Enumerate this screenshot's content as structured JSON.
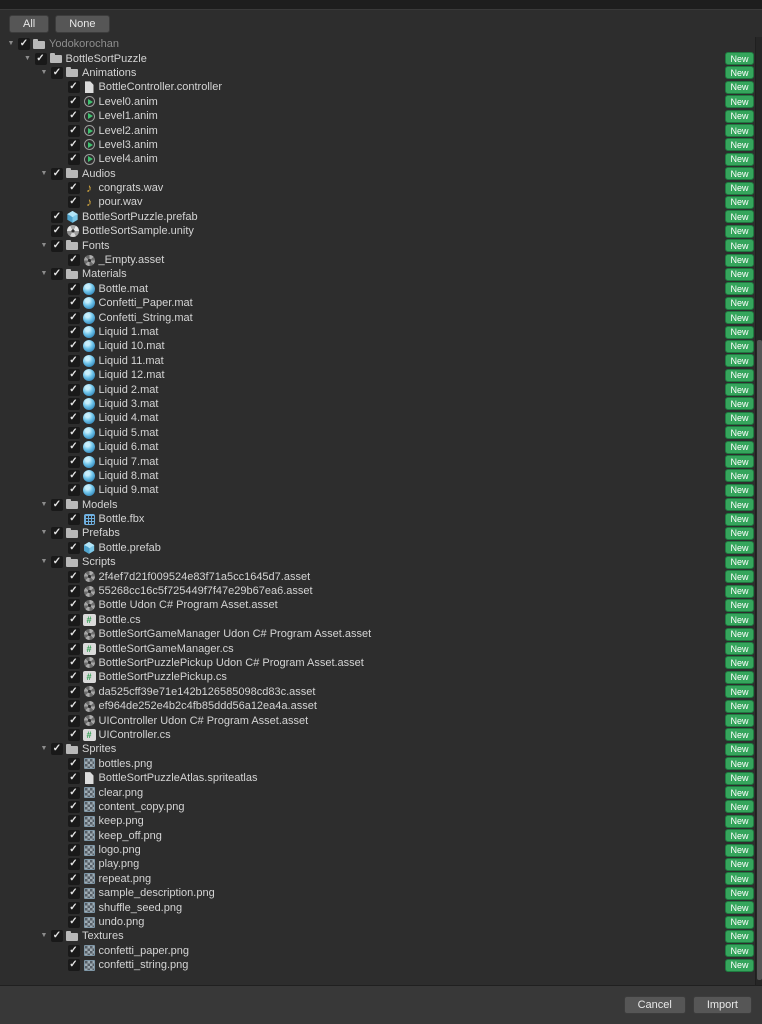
{
  "toolbar": {
    "all": "All",
    "none": "None"
  },
  "footer": {
    "cancel": "Cancel",
    "import": "Import"
  },
  "badge": "New",
  "glyphs": {
    "arrow": "▼",
    "check": "✓",
    "audio": "♪",
    "cs": "#"
  },
  "colors": {
    "badge_green": "#35a55c",
    "material_blue": "#58b8e4",
    "prefab_blue": "#8fd2ee",
    "audio_gold": "#d2a63e",
    "cs_green": "#2f9e50"
  },
  "tree": [
    {
      "label": "Yodokorochan",
      "level": 0,
      "icon": "folder",
      "arrow": true,
      "dim": true,
      "badge": false
    },
    {
      "label": "BottleSortPuzzle",
      "level": 1,
      "icon": "folder",
      "arrow": true
    },
    {
      "label": "Animations",
      "level": 2,
      "icon": "folder",
      "arrow": true
    },
    {
      "label": "BottleController.controller",
      "level": 3,
      "icon": "doc"
    },
    {
      "label": "Level0.anim",
      "level": 3,
      "icon": "anim"
    },
    {
      "label": "Level1.anim",
      "level": 3,
      "icon": "anim"
    },
    {
      "label": "Level2.anim",
      "level": 3,
      "icon": "anim"
    },
    {
      "label": "Level3.anim",
      "level": 3,
      "icon": "anim"
    },
    {
      "label": "Level4.anim",
      "level": 3,
      "icon": "anim"
    },
    {
      "label": "Audios",
      "level": 2,
      "icon": "folder",
      "arrow": true
    },
    {
      "label": "congrats.wav",
      "level": 3,
      "icon": "audio"
    },
    {
      "label": "pour.wav",
      "level": 3,
      "icon": "audio"
    },
    {
      "label": "BottleSortPuzzle.prefab",
      "level": 2,
      "icon": "prefab"
    },
    {
      "label": "BottleSortSample.unity",
      "level": 2,
      "icon": "unity"
    },
    {
      "label": "Fonts",
      "level": 2,
      "icon": "folder",
      "arrow": true
    },
    {
      "label": "_Empty.asset",
      "level": 3,
      "icon": "asset"
    },
    {
      "label": "Materials",
      "level": 2,
      "icon": "folder",
      "arrow": true
    },
    {
      "label": "Bottle.mat",
      "level": 3,
      "icon": "material"
    },
    {
      "label": "Confetti_Paper.mat",
      "level": 3,
      "icon": "material"
    },
    {
      "label": "Confetti_String.mat",
      "level": 3,
      "icon": "material"
    },
    {
      "label": "Liquid 1.mat",
      "level": 3,
      "icon": "material"
    },
    {
      "label": "Liquid 10.mat",
      "level": 3,
      "icon": "material"
    },
    {
      "label": "Liquid 11.mat",
      "level": 3,
      "icon": "material"
    },
    {
      "label": "Liquid 12.mat",
      "level": 3,
      "icon": "material"
    },
    {
      "label": "Liquid 2.mat",
      "level": 3,
      "icon": "material"
    },
    {
      "label": "Liquid 3.mat",
      "level": 3,
      "icon": "material"
    },
    {
      "label": "Liquid 4.mat",
      "level": 3,
      "icon": "material"
    },
    {
      "label": "Liquid 5.mat",
      "level": 3,
      "icon": "material"
    },
    {
      "label": "Liquid 6.mat",
      "level": 3,
      "icon": "material"
    },
    {
      "label": "Liquid 7.mat",
      "level": 3,
      "icon": "material"
    },
    {
      "label": "Liquid 8.mat",
      "level": 3,
      "icon": "material"
    },
    {
      "label": "Liquid 9.mat",
      "level": 3,
      "icon": "material"
    },
    {
      "label": "Models",
      "level": 2,
      "icon": "folder",
      "arrow": true
    },
    {
      "label": "Bottle.fbx",
      "level": 3,
      "icon": "fbx"
    },
    {
      "label": "Prefabs",
      "level": 2,
      "icon": "folder",
      "arrow": true
    },
    {
      "label": "Bottle.prefab",
      "level": 3,
      "icon": "prefab"
    },
    {
      "label": "Scripts",
      "level": 2,
      "icon": "folder",
      "arrow": true
    },
    {
      "label": "2f4ef7d21f009524e83f71a5cc1645d7.asset",
      "level": 3,
      "icon": "asset"
    },
    {
      "label": "55268cc16c5f725449f7f47e29b67ea6.asset",
      "level": 3,
      "icon": "asset"
    },
    {
      "label": "Bottle Udon C# Program Asset.asset",
      "level": 3,
      "icon": "asset"
    },
    {
      "label": "Bottle.cs",
      "level": 3,
      "icon": "cs"
    },
    {
      "label": "BottleSortGameManager Udon C# Program Asset.asset",
      "level": 3,
      "icon": "asset"
    },
    {
      "label": "BottleSortGameManager.cs",
      "level": 3,
      "icon": "cs"
    },
    {
      "label": "BottleSortPuzzlePickup Udon C# Program Asset.asset",
      "level": 3,
      "icon": "asset"
    },
    {
      "label": "BottleSortPuzzlePickup.cs",
      "level": 3,
      "icon": "cs"
    },
    {
      "label": "da525cff39e71e142b126585098cd83c.asset",
      "level": 3,
      "icon": "asset"
    },
    {
      "label": "ef964de252e4b2c4fb85ddd56a12ea4a.asset",
      "level": 3,
      "icon": "asset"
    },
    {
      "label": "UIController Udon C# Program Asset.asset",
      "level": 3,
      "icon": "asset"
    },
    {
      "label": "UIController.cs",
      "level": 3,
      "icon": "cs"
    },
    {
      "label": "Sprites",
      "level": 2,
      "icon": "folder",
      "arrow": true
    },
    {
      "label": "bottles.png",
      "level": 3,
      "icon": "texture"
    },
    {
      "label": "BottleSortPuzzleAtlas.spriteatlas",
      "level": 3,
      "icon": "doc"
    },
    {
      "label": "clear.png",
      "level": 3,
      "icon": "texture"
    },
    {
      "label": "content_copy.png",
      "level": 3,
      "icon": "texture"
    },
    {
      "label": "keep.png",
      "level": 3,
      "icon": "texture"
    },
    {
      "label": "keep_off.png",
      "level": 3,
      "icon": "texture"
    },
    {
      "label": "logo.png",
      "level": 3,
      "icon": "texture"
    },
    {
      "label": "play.png",
      "level": 3,
      "icon": "texture"
    },
    {
      "label": "repeat.png",
      "level": 3,
      "icon": "texture"
    },
    {
      "label": "sample_description.png",
      "level": 3,
      "icon": "texture"
    },
    {
      "label": "shuffle_seed.png",
      "level": 3,
      "icon": "texture"
    },
    {
      "label": "undo.png",
      "level": 3,
      "icon": "texture"
    },
    {
      "label": "Textures",
      "level": 2,
      "icon": "folder",
      "arrow": true
    },
    {
      "label": "confetti_paper.png",
      "level": 3,
      "icon": "texture"
    },
    {
      "label": "confetti_string.png",
      "level": 3,
      "icon": "texture"
    }
  ]
}
